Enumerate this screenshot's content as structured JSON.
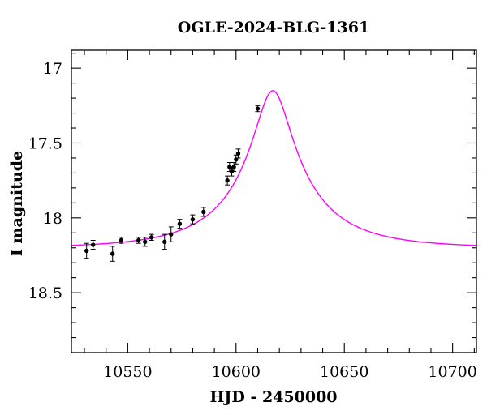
{
  "chart_data": {
    "type": "scatter",
    "title": "OGLE-2024-BLG-1361",
    "xlabel": "HJD - 2450000",
    "ylabel": "I magnitude",
    "xlim": [
      10524,
      10711
    ],
    "ylim": [
      18.9,
      16.88
    ],
    "y_inverted": true,
    "x_ticks": [
      10550,
      10600,
      10650,
      10700
    ],
    "x_tick_labels": [
      "10550",
      "10600",
      "10650",
      "10700"
    ],
    "y_ticks": [
      17,
      17.5,
      18,
      18.5
    ],
    "y_tick_labels": [
      "17",
      "17.5",
      "18",
      "18.5"
    ],
    "grid": false,
    "model": {
      "name": "model",
      "color": "#ff00ff",
      "t0": 10617,
      "u0": 0.2,
      "tE": 40,
      "I_base": 18.2,
      "I_peak": 17.15
    },
    "series": [
      {
        "name": "OGLE data",
        "color": "#000000",
        "points": [
          {
            "x": 10531,
            "y": 18.22,
            "err": 0.05
          },
          {
            "x": 10534,
            "y": 18.18,
            "err": 0.03
          },
          {
            "x": 10543,
            "y": 18.24,
            "err": 0.05
          },
          {
            "x": 10547,
            "y": 18.15,
            "err": 0.02
          },
          {
            "x": 10555,
            "y": 18.15,
            "err": 0.02
          },
          {
            "x": 10558,
            "y": 18.16,
            "err": 0.03
          },
          {
            "x": 10561,
            "y": 18.13,
            "err": 0.02
          },
          {
            "x": 10567,
            "y": 18.16,
            "err": 0.05
          },
          {
            "x": 10570,
            "y": 18.11,
            "err": 0.05
          },
          {
            "x": 10574,
            "y": 18.04,
            "err": 0.03
          },
          {
            "x": 10580,
            "y": 18.01,
            "err": 0.03
          },
          {
            "x": 10585,
            "y": 17.96,
            "err": 0.03
          },
          {
            "x": 10596,
            "y": 17.75,
            "err": 0.03
          },
          {
            "x": 10597,
            "y": 17.66,
            "err": 0.03
          },
          {
            "x": 10598,
            "y": 17.69,
            "err": 0.03
          },
          {
            "x": 10599,
            "y": 17.66,
            "err": 0.03
          },
          {
            "x": 10600,
            "y": 17.61,
            "err": 0.03
          },
          {
            "x": 10601,
            "y": 17.57,
            "err": 0.03
          },
          {
            "x": 10610,
            "y": 17.27,
            "err": 0.02
          }
        ]
      }
    ]
  }
}
